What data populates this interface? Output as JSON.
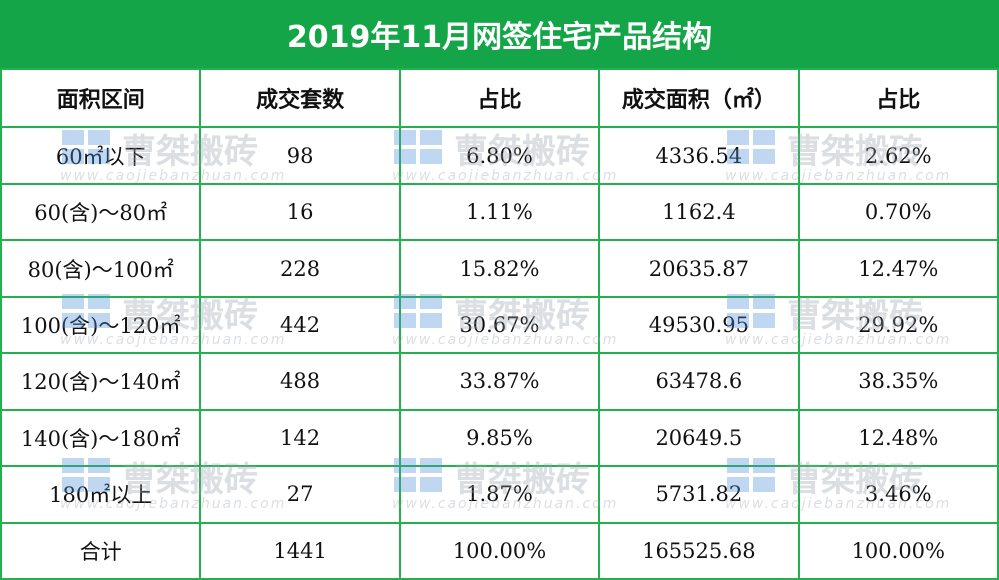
{
  "title": "2019年11月网签住宅产品结构",
  "table": {
    "header": [
      "面积区间",
      "成交套数",
      "占比",
      "成交面积（㎡）",
      "占比"
    ],
    "rows": [
      [
        "60㎡以下",
        "98",
        "6.80%",
        "4336.54",
        "2.62%"
      ],
      [
        "60(含)～80㎡",
        "16",
        "1.11%",
        "1162.4",
        "0.70%"
      ],
      [
        "80(含)～100㎡",
        "228",
        "15.82%",
        "20635.87",
        "12.47%"
      ],
      [
        "100(含)～120㎡",
        "442",
        "30.67%",
        "49530.95",
        "29.92%"
      ],
      [
        "120(含)～140㎡",
        "488",
        "33.87%",
        "63478.6",
        "38.35%"
      ],
      [
        "140(含)～180㎡",
        "142",
        "9.85%",
        "20649.5",
        "12.48%"
      ],
      [
        "180㎡以上",
        "27",
        "1.87%",
        "5731.82",
        "3.46%"
      ],
      [
        "合计",
        "1441",
        "100.00%",
        "165525.68",
        "100.00%"
      ]
    ]
  },
  "watermark": {
    "name": "曹桀搬砖",
    "url": "www.caojiebanzhuan.com"
  }
}
